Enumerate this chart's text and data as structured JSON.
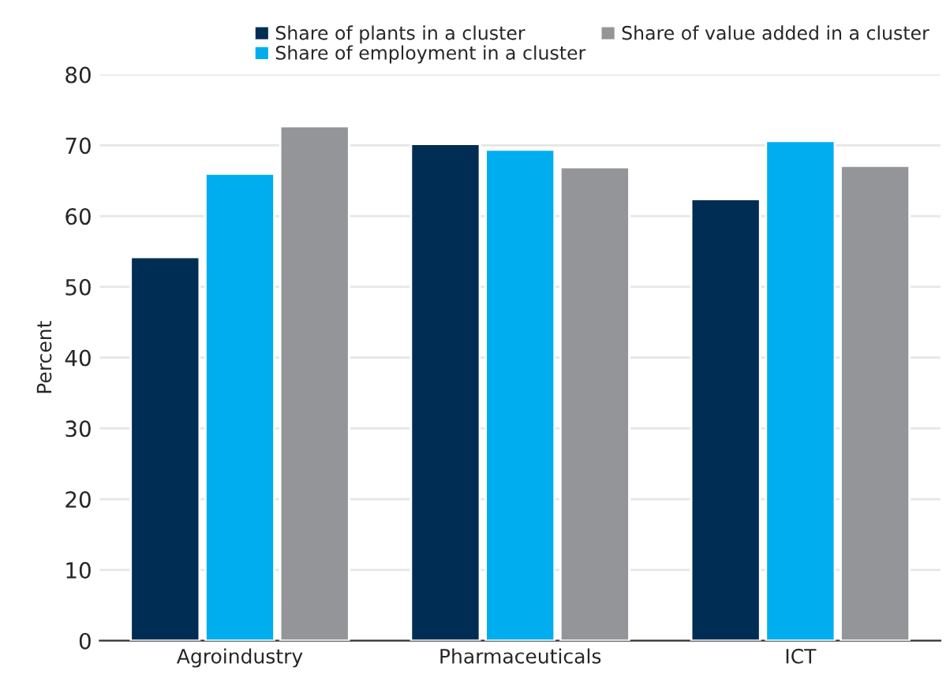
{
  "chart_data": {
    "type": "bar",
    "ylabel": "Percent",
    "categories": [
      "Agroindustry",
      "Pharmaceuticals",
      "ICT"
    ],
    "series": [
      {
        "name": "Share of plants in a cluster",
        "color": "#002d54",
        "values": [
          54.2,
          70.2,
          62.4
        ]
      },
      {
        "name": "Share of employment in a cluster",
        "color": "#00adee",
        "values": [
          66.0,
          69.4,
          70.6
        ]
      },
      {
        "name": "Share of value added in a cluster",
        "color": "#939598",
        "values": [
          72.7,
          66.9,
          67.1
        ]
      }
    ],
    "ylim": [
      0,
      80
    ],
    "yticks": [
      0,
      10,
      20,
      30,
      40,
      50,
      60,
      70,
      80
    ],
    "grid": "y",
    "legend": "top right"
  }
}
